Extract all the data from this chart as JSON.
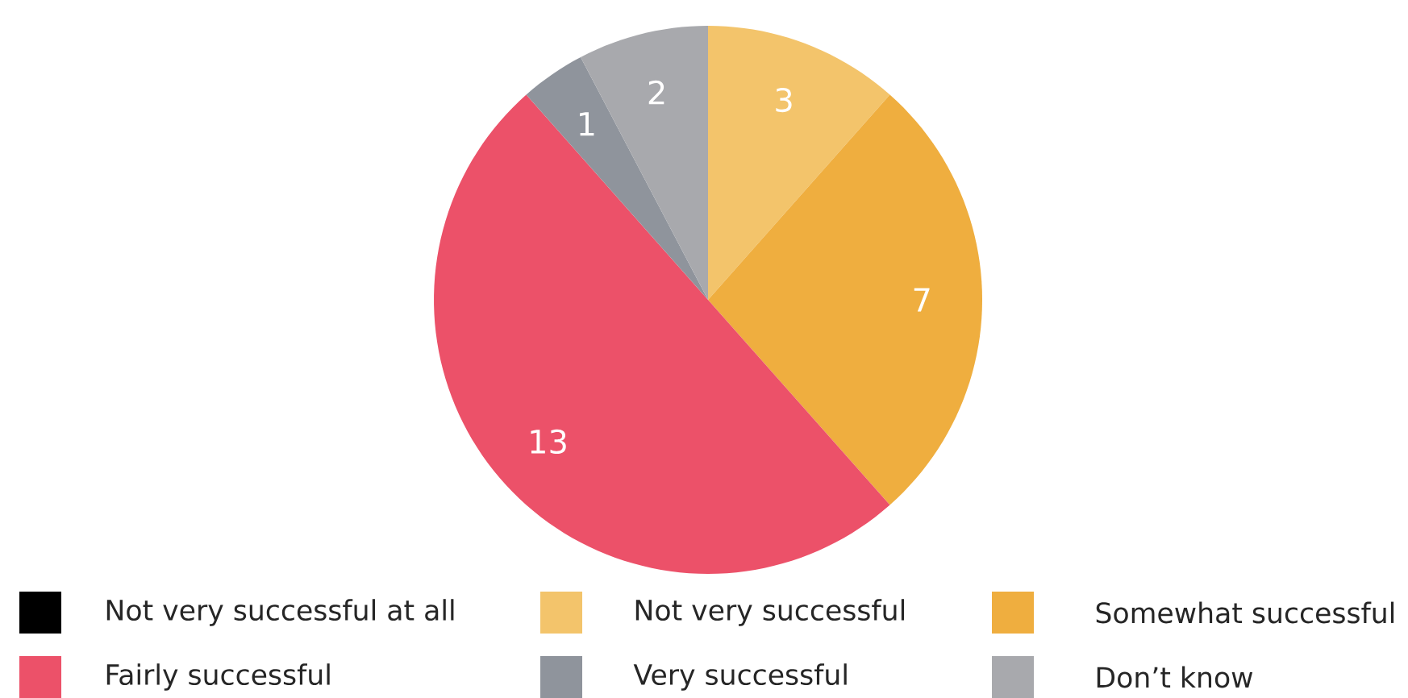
{
  "chart_data": {
    "type": "pie",
    "categories": [
      "Not very successful at all",
      "Not very successful",
      "Somewhat successful",
      "Fairly successful",
      "Very successful",
      "Don’t know"
    ],
    "values": [
      0,
      3,
      7,
      13,
      1,
      2
    ],
    "colors": [
      "#000000",
      "#f3c46b",
      "#efae3f",
      "#ec5169",
      "#8f949c",
      "#a8a9ad"
    ],
    "data_labels": true,
    "legend": "bottom"
  }
}
